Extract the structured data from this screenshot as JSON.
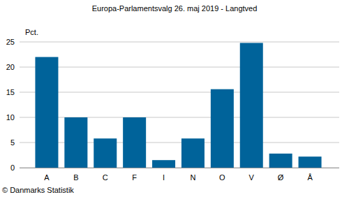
{
  "chart_data": {
    "type": "bar",
    "title": "Europa-Parlamentsvalg 26. maj 2019 - Langtved",
    "y_label": "Pct.",
    "source": "© Danmarks Statistik",
    "categories": [
      "A",
      "B",
      "C",
      "F",
      "I",
      "N",
      "O",
      "V",
      "Ø",
      "Å"
    ],
    "values": [
      22,
      10,
      5.8,
      10,
      1.5,
      5.8,
      15.6,
      24.8,
      2.8,
      2.2
    ],
    "color": "#00639a",
    "ylim": [
      0,
      25
    ],
    "yticks": [
      0,
      5,
      10,
      15,
      20,
      25
    ],
    "grid": true
  }
}
